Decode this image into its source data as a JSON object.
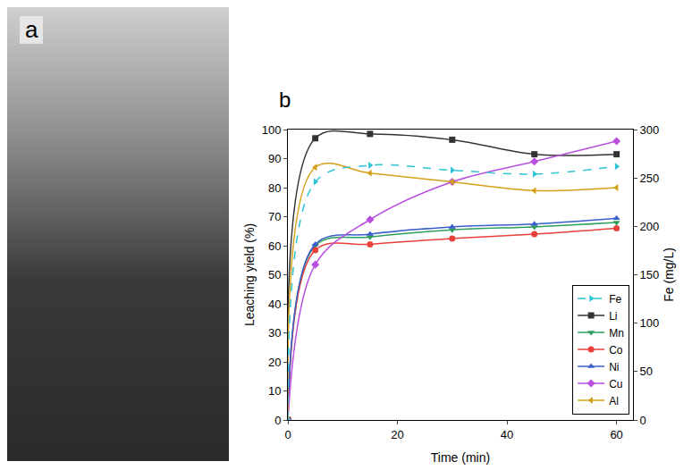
{
  "photo_panel": {
    "label": "a"
  },
  "chart_data": {
    "type": "line",
    "panel_label": "b",
    "x_label": "Time (min)",
    "y_label": "Leaching yield (%)",
    "y2_label": "Fe (mg/L)",
    "x": [
      0,
      5,
      15,
      30,
      45,
      60
    ],
    "xlim": [
      0,
      63
    ],
    "xticks": [
      0,
      20,
      40,
      60
    ],
    "ylim": [
      0,
      100
    ],
    "yticks": [
      0,
      10,
      20,
      30,
      40,
      50,
      60,
      70,
      80,
      90,
      100
    ],
    "y2lim": [
      0,
      300
    ],
    "y2ticks": [
      0,
      50,
      100,
      150,
      200,
      250,
      300
    ],
    "grid": false,
    "legend": "bottom right",
    "series": [
      {
        "name": "Fe",
        "color": "#2ec4d6",
        "marker": "triangle-right",
        "line_style": "dashed",
        "axis": "y2",
        "values": [
          0,
          246,
          263,
          258,
          254,
          262
        ]
      },
      {
        "name": "Li",
        "color": "#333333",
        "marker": "square",
        "line_style": "solid",
        "values": [
          0,
          97,
          98.5,
          96.5,
          91.5,
          91.5
        ]
      },
      {
        "name": "Mn",
        "color": "#2e9e5b",
        "marker": "triangle-down",
        "line_style": "solid",
        "values": [
          0,
          60,
          63,
          65.5,
          66.5,
          68
        ]
      },
      {
        "name": "Co",
        "color": "#e8413c",
        "marker": "circle",
        "line_style": "solid",
        "values": [
          0,
          58.5,
          60.5,
          62.5,
          64,
          66
        ]
      },
      {
        "name": "Ni",
        "color": "#3a5fcd",
        "marker": "triangle-up",
        "line_style": "solid",
        "values": [
          0,
          60.5,
          64,
          66.5,
          67.5,
          69.5
        ]
      },
      {
        "name": "Cu",
        "color": "#b84fe0",
        "marker": "diamond",
        "line_style": "solid",
        "values": [
          0,
          53.5,
          69,
          82,
          89,
          96
        ]
      },
      {
        "name": "Al",
        "color": "#d4a017",
        "marker": "triangle-left",
        "line_style": "solid",
        "values": [
          0,
          87,
          85,
          82,
          79,
          80
        ]
      }
    ]
  }
}
